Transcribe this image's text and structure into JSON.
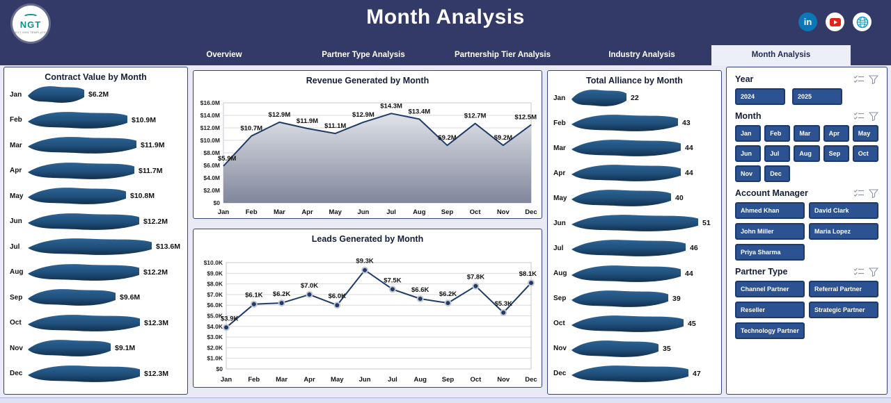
{
  "header": {
    "title": "Month Analysis",
    "logo_text": "NGT",
    "logo_sub": "NEXT GEN TEMPLATES"
  },
  "tabs": [
    {
      "label": "Overview",
      "active": false
    },
    {
      "label": "Partner Type Analysis",
      "active": false
    },
    {
      "label": "Partnership Tier Analysis",
      "active": false
    },
    {
      "label": "Industry Analysis",
      "active": false
    },
    {
      "label": "Month Analysis",
      "active": true
    }
  ],
  "colors": {
    "header_bg": "#343a68",
    "ribbon_top": "#2d6394",
    "ribbon_mid": "#1f4e79",
    "ribbon_bottom": "#12304d",
    "line": "#1f3b66",
    "area_top": "#dfe2e8",
    "area_bottom": "#7a8096",
    "grid": "#d9d9d9",
    "button_bg": "#2d5291",
    "button_border": "#1b3a6b",
    "linkedin": "#0a78b6",
    "youtube": "#e62117",
    "globe": "#12a0c8"
  },
  "chart_data": [
    {
      "type": "bar",
      "orientation": "horizontal",
      "title": "Contract Value by Month",
      "categories": [
        "Jan",
        "Feb",
        "Mar",
        "Apr",
        "May",
        "Jun",
        "Jul",
        "Aug",
        "Sep",
        "Oct",
        "Nov",
        "Dec"
      ],
      "values": [
        6.2,
        10.9,
        11.9,
        11.7,
        10.8,
        12.2,
        13.6,
        12.2,
        9.6,
        12.3,
        9.1,
        12.3
      ],
      "labels": [
        "$6.2M",
        "$10.9M",
        "$11.9M",
        "$11.7M",
        "$10.8M",
        "$12.2M",
        "$13.6M",
        "$12.2M",
        "$9.6M",
        "$12.3M",
        "$9.1M",
        "$12.3M"
      ],
      "unit": "USD millions"
    },
    {
      "type": "area",
      "title": "Revenue Generated by Month",
      "categories": [
        "Jan",
        "Feb",
        "Mar",
        "Apr",
        "May",
        "Jun",
        "Jul",
        "Aug",
        "Sep",
        "Oct",
        "Nov",
        "Dec"
      ],
      "values": [
        5.9,
        10.7,
        12.9,
        11.9,
        11.1,
        12.9,
        14.3,
        13.4,
        9.2,
        12.7,
        9.2,
        12.5
      ],
      "labels": [
        "$5.9M",
        "$10.7M",
        "$12.9M",
        "$11.9M",
        "$11.1M",
        "$12.9M",
        "$14.3M",
        "$13.4M",
        "$9.2M",
        "$12.7M",
        "$9.2M",
        "$12.5M"
      ],
      "ylim": [
        0,
        16
      ],
      "yticks": [
        "$0",
        "$2.0M",
        "$4.0M",
        "$6.0M",
        "$8.0M",
        "$10.0M",
        "$12.0M",
        "$14.0M",
        "$16.0M"
      ],
      "grid": true,
      "legend": "none"
    },
    {
      "type": "line",
      "title": "Leads Generated by Month",
      "categories": [
        "Jan",
        "Feb",
        "Mar",
        "Apr",
        "May",
        "Jun",
        "Jul",
        "Aug",
        "Sep",
        "Oct",
        "Nov",
        "Dec"
      ],
      "values": [
        3.9,
        6.1,
        6.2,
        7.0,
        6.0,
        9.3,
        7.5,
        6.6,
        6.2,
        7.8,
        5.3,
        8.1
      ],
      "labels": [
        "$3.9K",
        "$6.1K",
        "$6.2K",
        "$7.0K",
        "$6.0K",
        "$9.3K",
        "$7.5K",
        "$6.6K",
        "$6.2K",
        "$7.8K",
        "$5.3K",
        "$8.1K"
      ],
      "ylim": [
        0,
        10
      ],
      "yticks": [
        "$0",
        "$1.0K",
        "$2.0K",
        "$3.0K",
        "$4.0K",
        "$5.0K",
        "$6.0K",
        "$7.0K",
        "$8.0K",
        "$9.0K",
        "$10.0K"
      ],
      "grid": true,
      "legend": "none"
    },
    {
      "type": "bar",
      "orientation": "horizontal",
      "title": "Total Alliance by Month",
      "categories": [
        "Jan",
        "Feb",
        "Mar",
        "Apr",
        "May",
        "Jun",
        "Jul",
        "Aug",
        "Sep",
        "Oct",
        "Nov",
        "Dec"
      ],
      "values": [
        22,
        43,
        44,
        44,
        40,
        51,
        46,
        44,
        39,
        45,
        35,
        47
      ],
      "labels": [
        "22",
        "43",
        "44",
        "44",
        "40",
        "51",
        "46",
        "44",
        "39",
        "45",
        "35",
        "47"
      ],
      "unit": "count"
    }
  ],
  "filters": {
    "year": {
      "label": "Year",
      "options": [
        "2024",
        "2025"
      ]
    },
    "month": {
      "label": "Month",
      "options": [
        "Jan",
        "Feb",
        "Mar",
        "Apr",
        "May",
        "Jun",
        "Jul",
        "Aug",
        "Sep",
        "Oct",
        "Nov",
        "Dec"
      ]
    },
    "account_manager": {
      "label": "Account Manager",
      "options": [
        "Ahmed Khan",
        "David Clark",
        "John Miller",
        "Maria Lopez",
        "Priya Sharma"
      ]
    },
    "partner_type": {
      "label": "Partner Type",
      "options": [
        "Channel Partner",
        "Referral Partner",
        "Reseller",
        "Strategic Partner",
        "Technology Partner"
      ]
    }
  }
}
